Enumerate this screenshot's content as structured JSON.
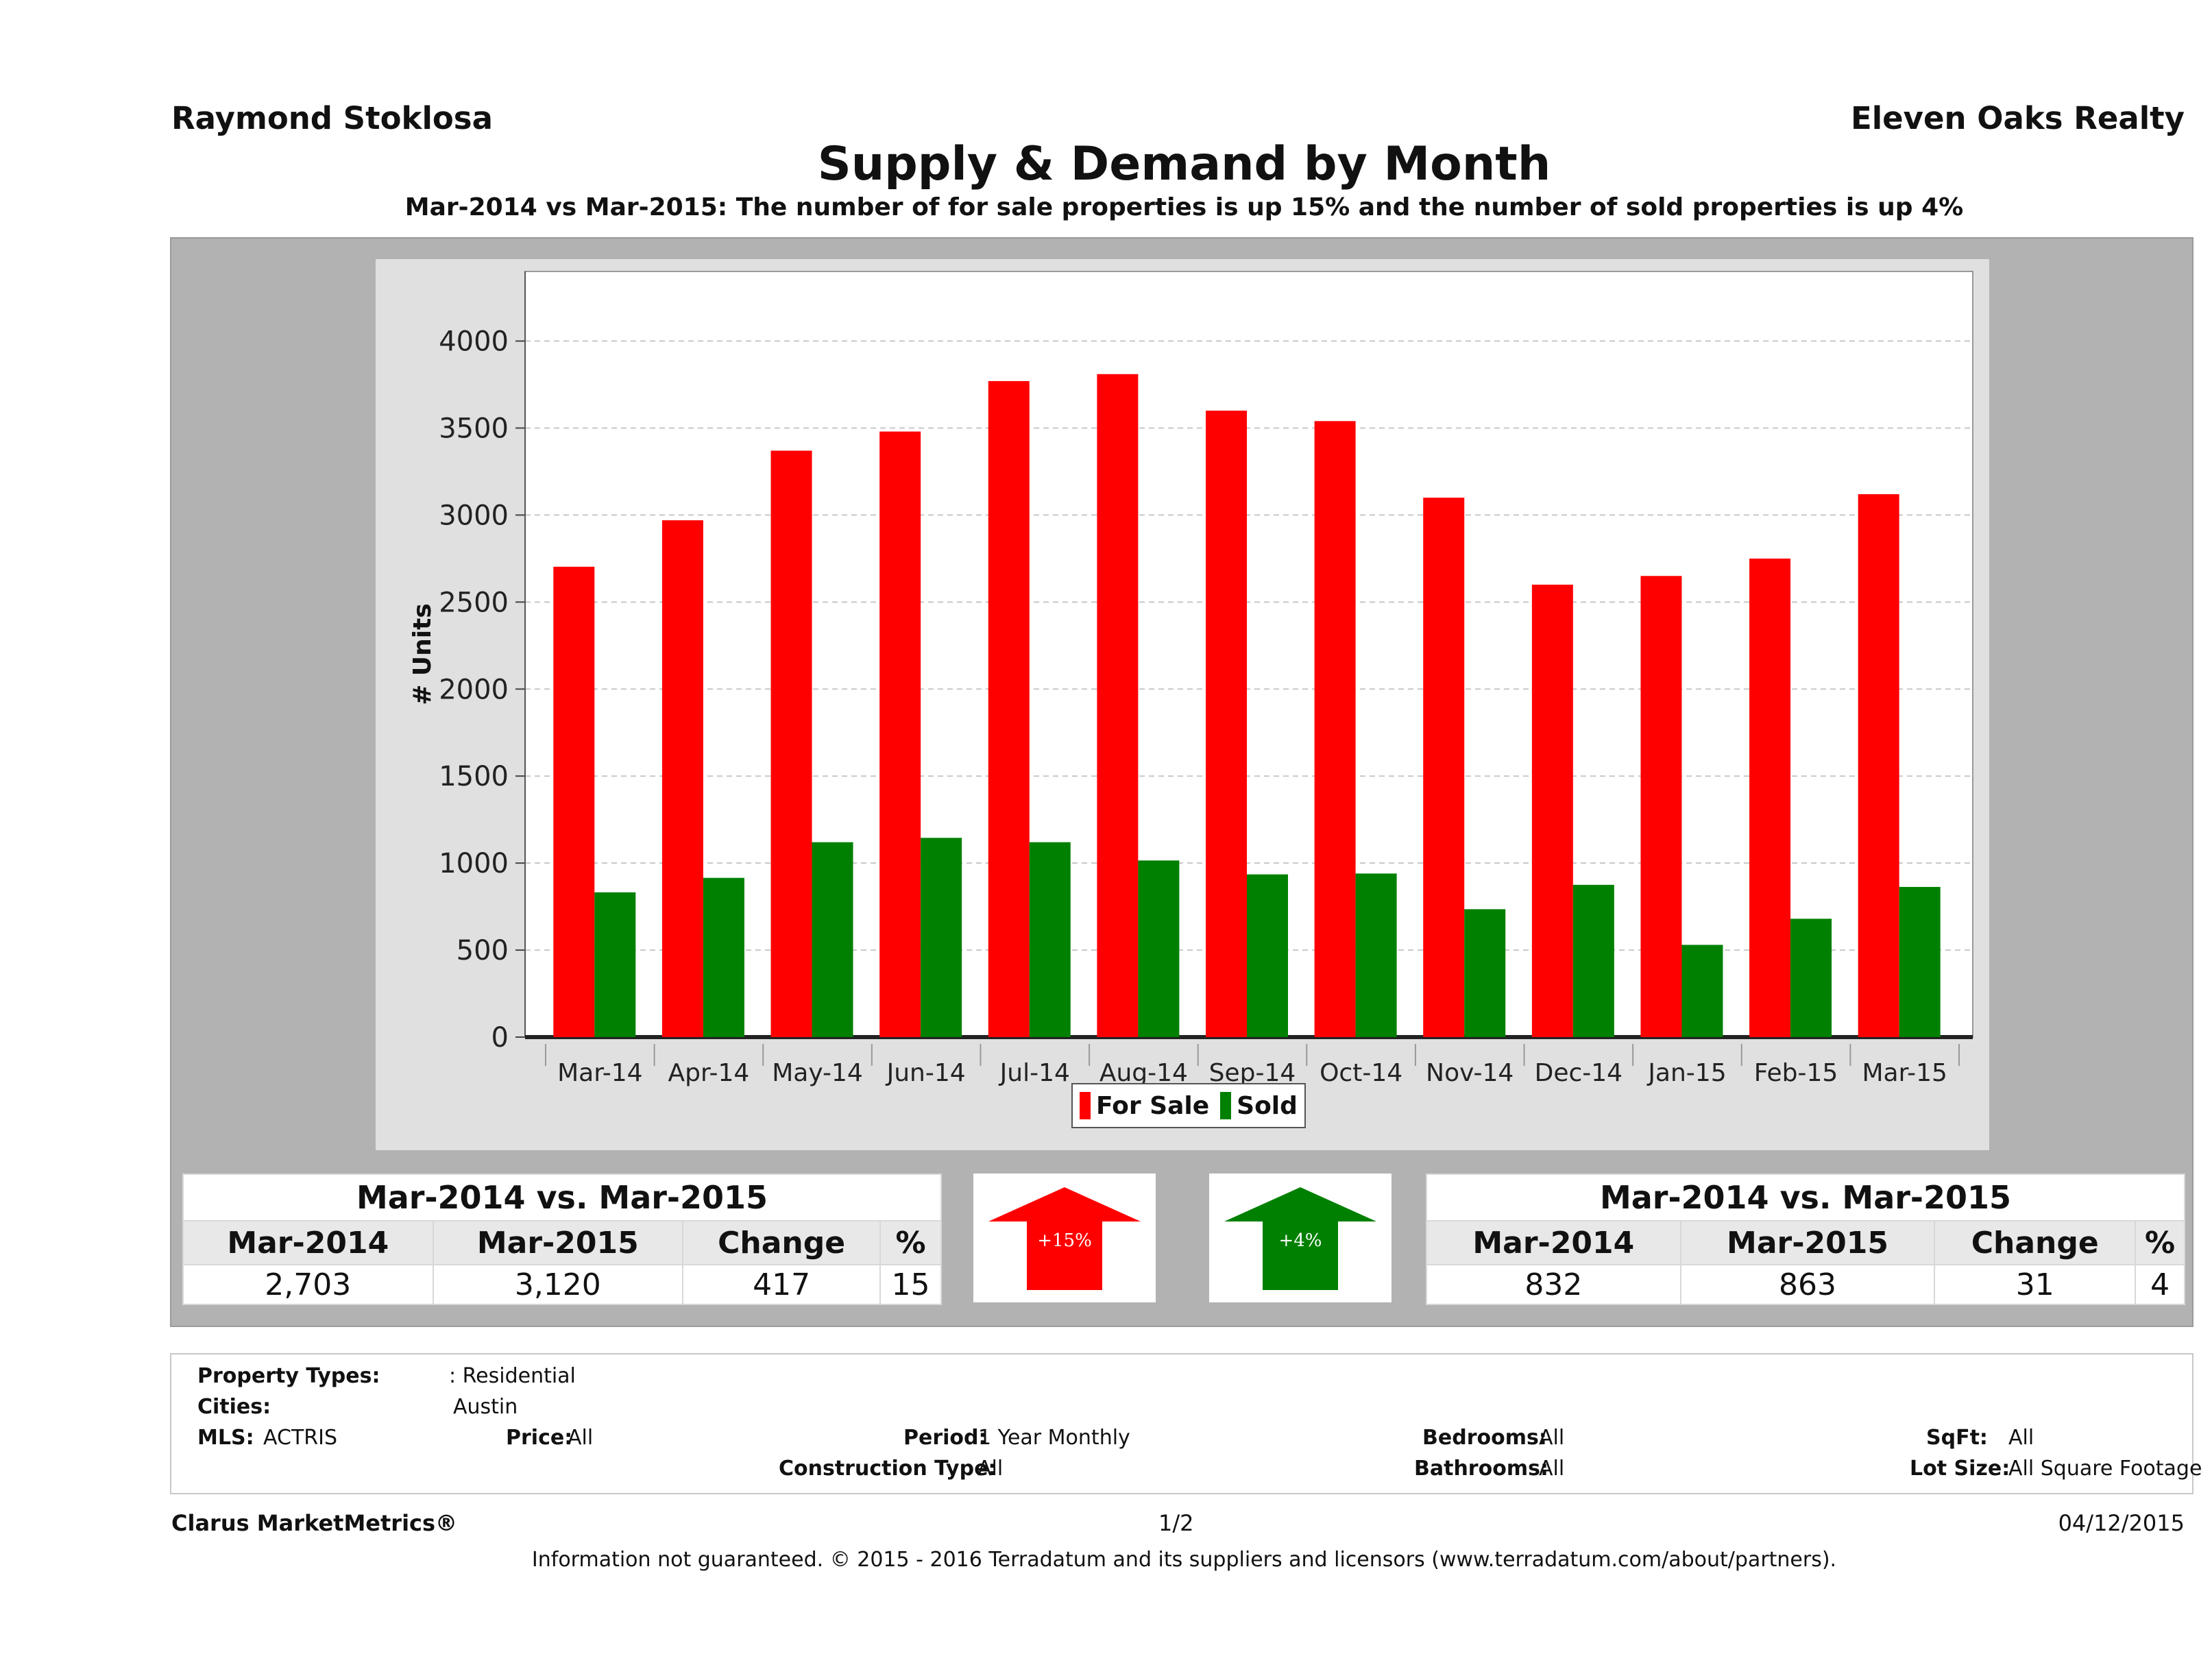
{
  "header": {
    "agent": "Raymond Stoklosa",
    "brokerage": "Eleven Oaks Realty",
    "title": "Supply & Demand by Month",
    "subtitle": "Mar-2014 vs Mar-2015: The number of for sale properties is up 15% and the number of sold properties is up 4%"
  },
  "colors": {
    "for_sale": "#ff0000",
    "sold": "#008000",
    "panel": "#b2b2b2",
    "plot_bg": "#ffffff"
  },
  "chart_data": {
    "type": "bar",
    "categories": [
      "Mar-14",
      "Apr-14",
      "May-14",
      "Jun-14",
      "Jul-14",
      "Aug-14",
      "Sep-14",
      "Oct-14",
      "Nov-14",
      "Dec-14",
      "Jan-15",
      "Feb-15",
      "Mar-15"
    ],
    "series": [
      {
        "name": "For Sale",
        "color": "#ff0000",
        "values": [
          2703,
          2970,
          3370,
          3480,
          3770,
          3810,
          3600,
          3540,
          3100,
          2600,
          2650,
          2750,
          3120
        ]
      },
      {
        "name": "Sold",
        "color": "#008000",
        "values": [
          832,
          915,
          1120,
          1145,
          1120,
          1015,
          935,
          940,
          735,
          875,
          530,
          680,
          863
        ]
      }
    ],
    "ylabel": "# Units",
    "xlabel": "",
    "ylim": [
      0,
      4400
    ],
    "yticks": [
      "0",
      "500",
      "1000",
      "1500",
      "2000",
      "2500",
      "3000",
      "3500",
      "4000"
    ],
    "grid": true,
    "legend_position": "bottom"
  },
  "for_sale_summary": {
    "caption": "Mar-2014 vs. Mar-2015",
    "headers": [
      "Mar-2014",
      "Mar-2015",
      "Change",
      "%"
    ],
    "values": [
      "2,703",
      "3,120",
      "417",
      "15"
    ],
    "badge": "+15%",
    "badge_color": "#ff0000"
  },
  "sold_summary": {
    "caption": "Mar-2014 vs. Mar-2015",
    "headers": [
      "Mar-2014",
      "Mar-2015",
      "Change",
      "%"
    ],
    "values": [
      "832",
      "863",
      "31",
      "4"
    ],
    "badge": "+4%",
    "badge_color": "#008000"
  },
  "criteria": {
    "property_types_label": "Property Types:",
    "property_types_value": ": Residential",
    "cities_label": "Cities:",
    "cities_value": "Austin",
    "mls_label": "MLS:",
    "mls_value": "ACTRIS",
    "price_label": "Price:",
    "price_value": "All",
    "period_label": "Period:",
    "period_value": "1 Year Monthly",
    "construction_label": "Construction Type:",
    "construction_value": "All",
    "bedrooms_label": "Bedrooms:",
    "bedrooms_value": "All",
    "bathrooms_label": "Bathrooms:",
    "bathrooms_value": "All",
    "sqft_label": "SqFt:",
    "sqft_value": "All",
    "lot_size_label": "Lot Size:",
    "lot_size_value": "All Square Footage"
  },
  "footer": {
    "product": "Clarus MarketMetrics®",
    "page": "1/2",
    "date": "04/12/2015",
    "disclaimer": "Information not guaranteed. © 2015 - 2016 Terradatum and its suppliers and licensors (www.terradatum.com/about/partners)."
  }
}
